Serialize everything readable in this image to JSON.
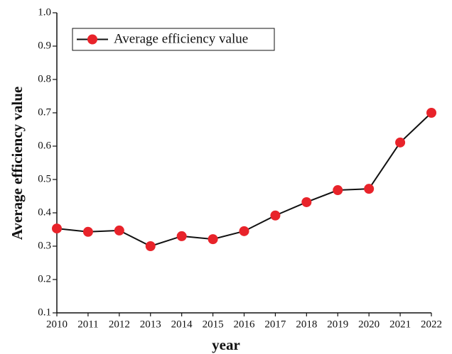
{
  "chart_data": {
    "type": "line",
    "x": [
      2010,
      2011,
      2012,
      2013,
      2014,
      2015,
      2016,
      2017,
      2018,
      2019,
      2020,
      2021,
      2022
    ],
    "series": [
      {
        "name": "Average efficiency value",
        "color": "#e8232a",
        "line_color": "#111111",
        "values": [
          0.353,
          0.343,
          0.347,
          0.3,
          0.33,
          0.321,
          0.345,
          0.392,
          0.432,
          0.468,
          0.472,
          0.611,
          0.7
        ]
      }
    ],
    "xlabel": "year",
    "ylabel": "Average efficiency value",
    "xlim": [
      2010,
      2022
    ],
    "xticks": [
      2010,
      2011,
      2012,
      2013,
      2014,
      2015,
      2016,
      2017,
      2018,
      2019,
      2020,
      2021,
      2022
    ],
    "ylim": [
      0.1,
      1.0
    ],
    "yticks": [
      0.1,
      0.2,
      0.3,
      0.4,
      0.5,
      0.6,
      0.7,
      0.8,
      0.9,
      {
        "value": 1.0,
        "label": "1.0"
      }
    ],
    "legend": "upper left",
    "grid": false
  }
}
